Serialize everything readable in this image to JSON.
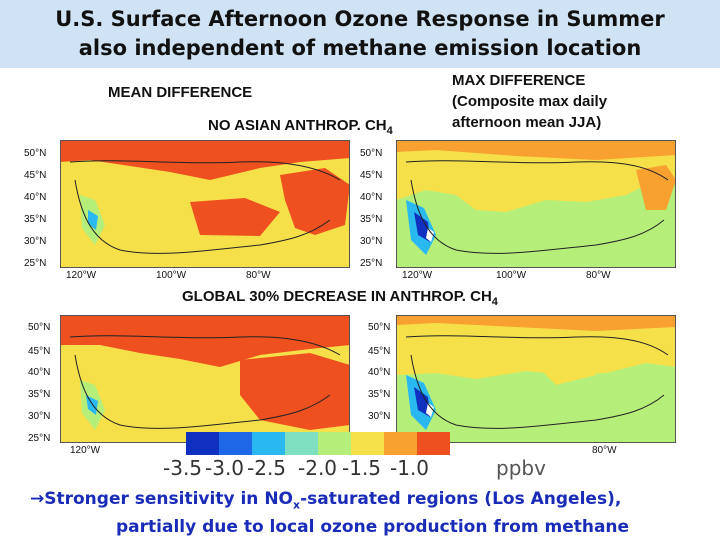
{
  "title": {
    "line1": "U.S. Surface Afternoon Ozone Response in Summer",
    "line2": "also independent of methane emission location"
  },
  "labels": {
    "mean_difference": "MEAN DIFFERENCE",
    "no_asian": "NO ASIAN ANTHROP. CH",
    "no_asian_sub": "4",
    "max_difference_1": "MAX DIFFERENCE",
    "max_difference_2": "(Composite max daily",
    "max_difference_3": "afternoon mean JJA)",
    "global_decrease": "GLOBAL 30% DECREASE IN ANTHROP. CH",
    "global_sub": "4"
  },
  "map_axes": {
    "lat_ticks": [
      "50°N",
      "45°N",
      "40°N",
      "35°N",
      "30°N",
      "25°N"
    ],
    "lon_ticks": [
      "120°W",
      "100°W",
      "80°W"
    ]
  },
  "colorbar": {
    "colors": [
      "#1030c0",
      "#1e68e8",
      "#2ab8f0",
      "#7ee0c0",
      "#b6ee7a",
      "#f6e04a",
      "#f8a030",
      "#ee5020"
    ],
    "tick_labels": [
      "-3.5",
      "-3.0",
      "-2.5",
      "-2.0",
      "-1.5",
      "-1.0"
    ],
    "unit": "ppbv"
  },
  "footer": {
    "arrow": "→",
    "line1_a": "Stronger sensitivity in NO",
    "line1_sub": "x",
    "line1_b": "-saturated regions (Los Angeles),",
    "line2": "partially due to local ozone production from methane"
  }
}
